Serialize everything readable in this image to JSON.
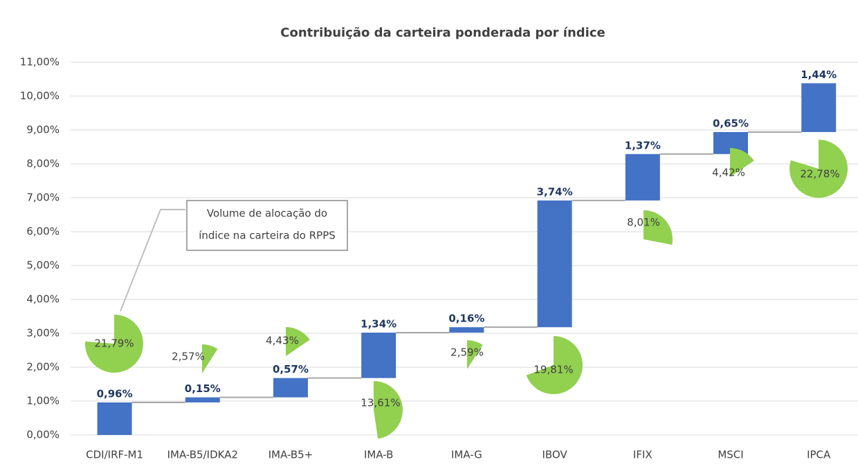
{
  "chart_data": {
    "type": "waterfall",
    "title": "Contribuição da carteira ponderada por índice",
    "categories": [
      "CDI/IRF-M1",
      "IMA-B5/IDKA2",
      "IMA-B5+",
      "IMA-B",
      "IMA-G",
      "IBOV",
      "IFIX",
      "MSCI",
      "IPCA"
    ],
    "values": [
      0.96,
      0.15,
      0.57,
      1.34,
      0.16,
      3.74,
      1.37,
      0.65,
      1.44
    ],
    "value_labels": [
      "0,96%",
      "0,15%",
      "0,57%",
      "1,34%",
      "0,16%",
      "3,74%",
      "1,37%",
      "0,65%",
      "1,44%"
    ],
    "color": "#4472c4",
    "allocation": [
      21.79,
      2.57,
      4.43,
      13.61,
      2.59,
      19.81,
      8.01,
      4.42,
      22.78
    ],
    "allocation_labels": [
      "21,79%",
      "2,57%",
      "4,43%",
      "13,61%",
      "2,59%",
      "19,81%",
      "8,01%",
      "4,42%",
      "22,78%"
    ],
    "allocation_color": "#92d050",
    "annotation": [
      "Volume de alocação do",
      "índice na carteira do RPPS"
    ],
    "ylim": [
      0,
      11
    ],
    "yticks": [
      {
        "value": 0,
        "label": "0,00%"
      },
      {
        "value": 1,
        "label": "1,00%"
      },
      {
        "value": 2,
        "label": "2,00%"
      },
      {
        "value": 3,
        "label": "3,00%"
      },
      {
        "value": 4,
        "label": "4,00%"
      },
      {
        "value": 5,
        "label": "5,00%"
      },
      {
        "value": 6,
        "label": "6,00%"
      },
      {
        "value": 7,
        "label": "7,00%"
      },
      {
        "value": 8,
        "label": "8,00%"
      },
      {
        "value": 9,
        "label": "9,00%"
      },
      {
        "value": 10,
        "label": "10,00%"
      },
      {
        "value": 11,
        "label": "11,00%"
      }
    ],
    "grid": true
  }
}
